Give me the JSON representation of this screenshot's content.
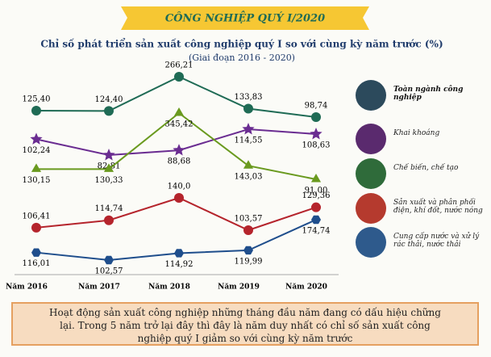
{
  "header": "CÔNG NGHIỆP QUÝ I/2020",
  "chart_data": {
    "type": "line",
    "title": "Chỉ số phát triển sản xuất công nghiệp quý I so với cùng kỳ năm trước (%)",
    "subtitle": "(Giai đoạn 2016 - 2020)",
    "categories": [
      "Năm 2016",
      "Năm 2017",
      "Năm 2018",
      "Năm 2019",
      "Năm 2020"
    ],
    "series": [
      {
        "name": "Toàn ngành công nghiệp",
        "color": "#1f6b55",
        "marker": "circle",
        "values": [
          125.4,
          124.4,
          266.21,
          133.83,
          98.74
        ],
        "value_labels": [
          "125,40",
          "124,40",
          "266,21",
          "133,83",
          "98,74"
        ]
      },
      {
        "name": "Khai khoáng",
        "color": "#6a2c91",
        "marker": "star",
        "values": [
          102.24,
          82.81,
          88.68,
          114.55,
          108.63
        ],
        "value_labels": [
          "102,24",
          "82,81",
          "88,68",
          "114,55",
          "108,63"
        ]
      },
      {
        "name": "Chế biến, chế tạo",
        "color": "#6a9a1f",
        "marker": "triangle",
        "values": [
          130.15,
          130.33,
          345.42,
          143.03,
          91.0
        ],
        "value_labels": [
          "130,15",
          "130,33",
          "345,42",
          "143,03",
          "91,00"
        ]
      },
      {
        "name": "Sản xuất và phân phối điện, khí đốt, nước nóng",
        "color": "#b5242c",
        "marker": "circle",
        "values": [
          106.41,
          114.74,
          140.0,
          103.57,
          129.36
        ],
        "value_labels": [
          "106,41",
          "114,74",
          "140,0",
          "103,57",
          "129,36"
        ]
      },
      {
        "name": "Cung cấp nước và xử lý rác thải, nước thải",
        "color": "#1f4e8c",
        "marker": "hexagon",
        "values": [
          116.01,
          102.57,
          114.92,
          119.99,
          174.74
        ],
        "value_labels": [
          "116,01",
          "102,57",
          "114,92",
          "119,99",
          "174,74"
        ]
      }
    ]
  },
  "note": "Hoạt động sản xuất công nghiệp những tháng đầu năm đang có dấu hiệu chững lại. Trong 5 năm trở lại đây thì đây là năm duy nhất có chỉ số sản xuất công nghiệp quý I giảm so với cùng kỳ năm trước"
}
